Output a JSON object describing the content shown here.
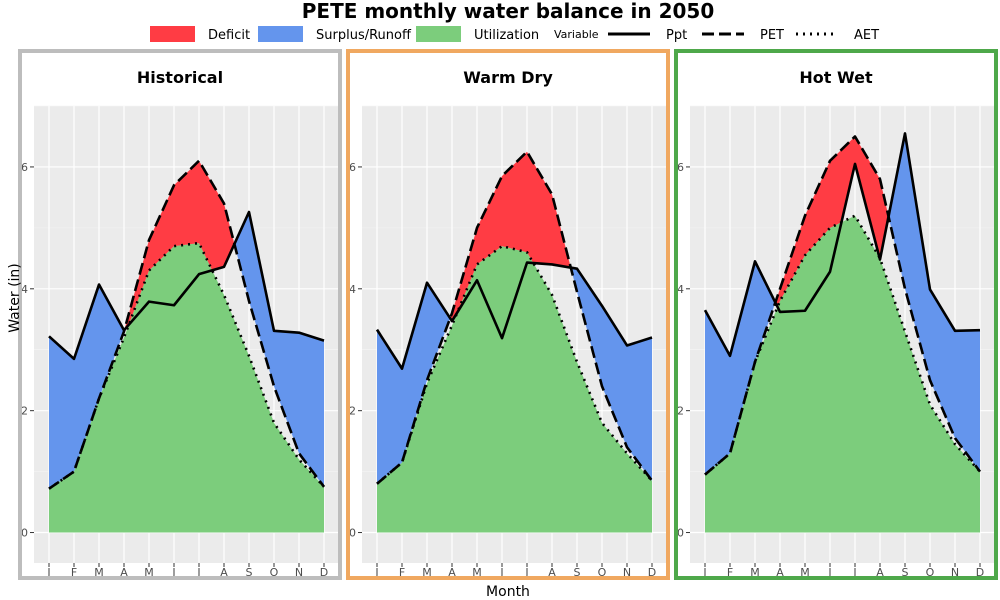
{
  "chart_data": {
    "type": "area",
    "title": "PETE monthly water balance in 2050",
    "xlabel": "Month",
    "ylabel": "Water (in)",
    "ylim": [
      -0.5,
      7.0
    ],
    "yticks": [
      0,
      2,
      4,
      6
    ],
    "months": [
      "J",
      "F",
      "M",
      "A",
      "M",
      "J",
      "J",
      "A",
      "S",
      "O",
      "N",
      "D"
    ],
    "grid": true,
    "legend": {
      "placement": "top",
      "fill_title": "",
      "fill_items": [
        {
          "label": "Deficit",
          "color": "#ff3c44"
        },
        {
          "label": "Surplus/Runoff",
          "color": "#6495ed"
        },
        {
          "label": "Utilization",
          "color": "#7ccd7c"
        }
      ],
      "line_title": "Variable",
      "line_items": [
        {
          "label": "Ppt",
          "style": "solid"
        },
        {
          "label": "PET",
          "style": "dashed"
        },
        {
          "label": "AET",
          "style": "dotted"
        }
      ]
    },
    "panels": [
      {
        "name": "Historical",
        "border_color": "#bdbdbd",
        "ppt": [
          3.22,
          2.85,
          4.07,
          3.32,
          3.79,
          3.73,
          4.24,
          4.36,
          5.26,
          3.31,
          3.28,
          3.15
        ],
        "pet": [
          0.72,
          1.0,
          2.2,
          3.3,
          4.8,
          5.7,
          6.1,
          5.4,
          3.8,
          2.4,
          1.3,
          0.75
        ],
        "aet": [
          0.72,
          1.0,
          2.2,
          3.2,
          4.3,
          4.7,
          4.75,
          3.9,
          2.9,
          1.8,
          1.2,
          0.75
        ]
      },
      {
        "name": "Warm Dry",
        "border_color": "#f0a860",
        "ppt": [
          3.33,
          2.69,
          4.1,
          3.47,
          4.14,
          3.19,
          4.43,
          4.4,
          4.33,
          3.72,
          3.07,
          3.2
        ],
        "pet": [
          0.8,
          1.15,
          2.5,
          3.6,
          5.0,
          5.85,
          6.25,
          5.55,
          3.95,
          2.4,
          1.4,
          0.85
        ],
        "aet": [
          0.8,
          1.15,
          2.45,
          3.4,
          4.4,
          4.7,
          4.6,
          3.9,
          2.8,
          1.8,
          1.3,
          0.85
        ]
      },
      {
        "name": "Hot Wet",
        "border_color": "#4ea84a",
        "ppt": [
          3.65,
          2.9,
          4.45,
          3.62,
          3.64,
          4.28,
          6.05,
          4.48,
          6.55,
          3.99,
          3.31,
          3.32
        ],
        "pet": [
          0.95,
          1.3,
          2.8,
          4.0,
          5.2,
          6.1,
          6.5,
          5.8,
          4.0,
          2.5,
          1.55,
          1.0
        ],
        "aet": [
          0.95,
          1.3,
          2.8,
          3.8,
          4.55,
          5.0,
          5.2,
          4.5,
          3.3,
          2.1,
          1.45,
          1.0
        ]
      }
    ]
  }
}
